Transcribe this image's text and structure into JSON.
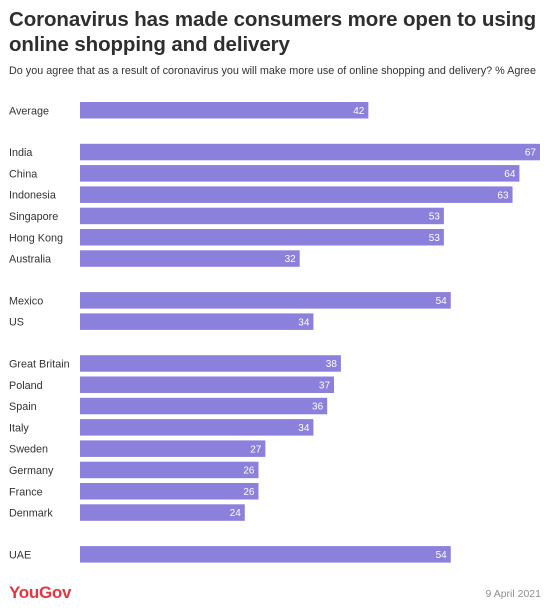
{
  "header": {
    "title": "Coronavirus has made consumers more open to using online shopping and delivery",
    "subtitle": "Do you agree that as a result of coronavirus you will make more use of online shopping and delivery? % Agree"
  },
  "footer": {
    "brand": "YouGov",
    "date": "9 April 2021"
  },
  "colors": {
    "bar": "#8b80db",
    "brand": "#e4363f"
  },
  "chart_data": {
    "type": "bar",
    "orientation": "horizontal",
    "title": "Coronavirus has made consumers more open to using online shopping and delivery",
    "subtitle": "Do you agree that as a result of coronavirus you will make more use of online shopping and delivery? % Agree",
    "xlim": [
      0,
      67
    ],
    "grid": false,
    "data_labels": true,
    "groups": [
      {
        "categories": [
          "Average"
        ],
        "values": [
          42
        ]
      },
      {
        "categories": [
          "India",
          "China",
          "Indonesia",
          "Singapore",
          "Hong Kong",
          "Australia"
        ],
        "values": [
          67,
          64,
          63,
          53,
          53,
          32
        ]
      },
      {
        "categories": [
          "Mexico",
          "US"
        ],
        "values": [
          54,
          34
        ]
      },
      {
        "categories": [
          "Great Britain",
          "Poland",
          "Spain",
          "Italy",
          "Sweden",
          "Germany",
          "France",
          "Denmark"
        ],
        "values": [
          38,
          37,
          36,
          34,
          27,
          26,
          26,
          24
        ]
      },
      {
        "categories": [
          "UAE"
        ],
        "values": [
          54
        ]
      }
    ]
  }
}
